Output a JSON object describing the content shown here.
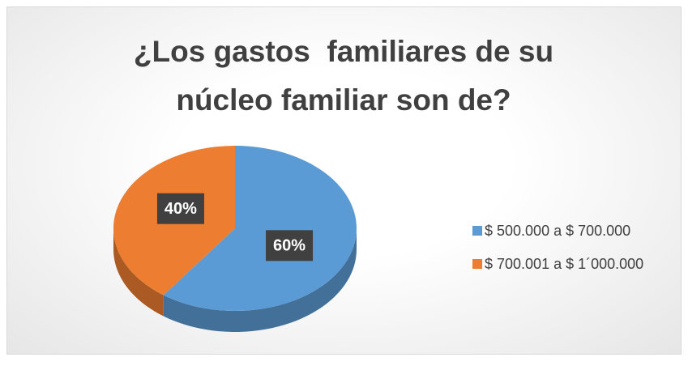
{
  "chart_data": {
    "type": "pie3d",
    "title": "¿Los gastos  familiares de su núcleo familiar son de?",
    "categories": [
      "$ 500.000 a $ 700.000",
      "$ 700.001 a $ 1´000.000"
    ],
    "values": [
      60,
      40
    ],
    "value_labels": [
      "60%",
      "40%"
    ],
    "colors": [
      "#5b9bd5",
      "#ed7d31"
    ],
    "legend": "right"
  }
}
